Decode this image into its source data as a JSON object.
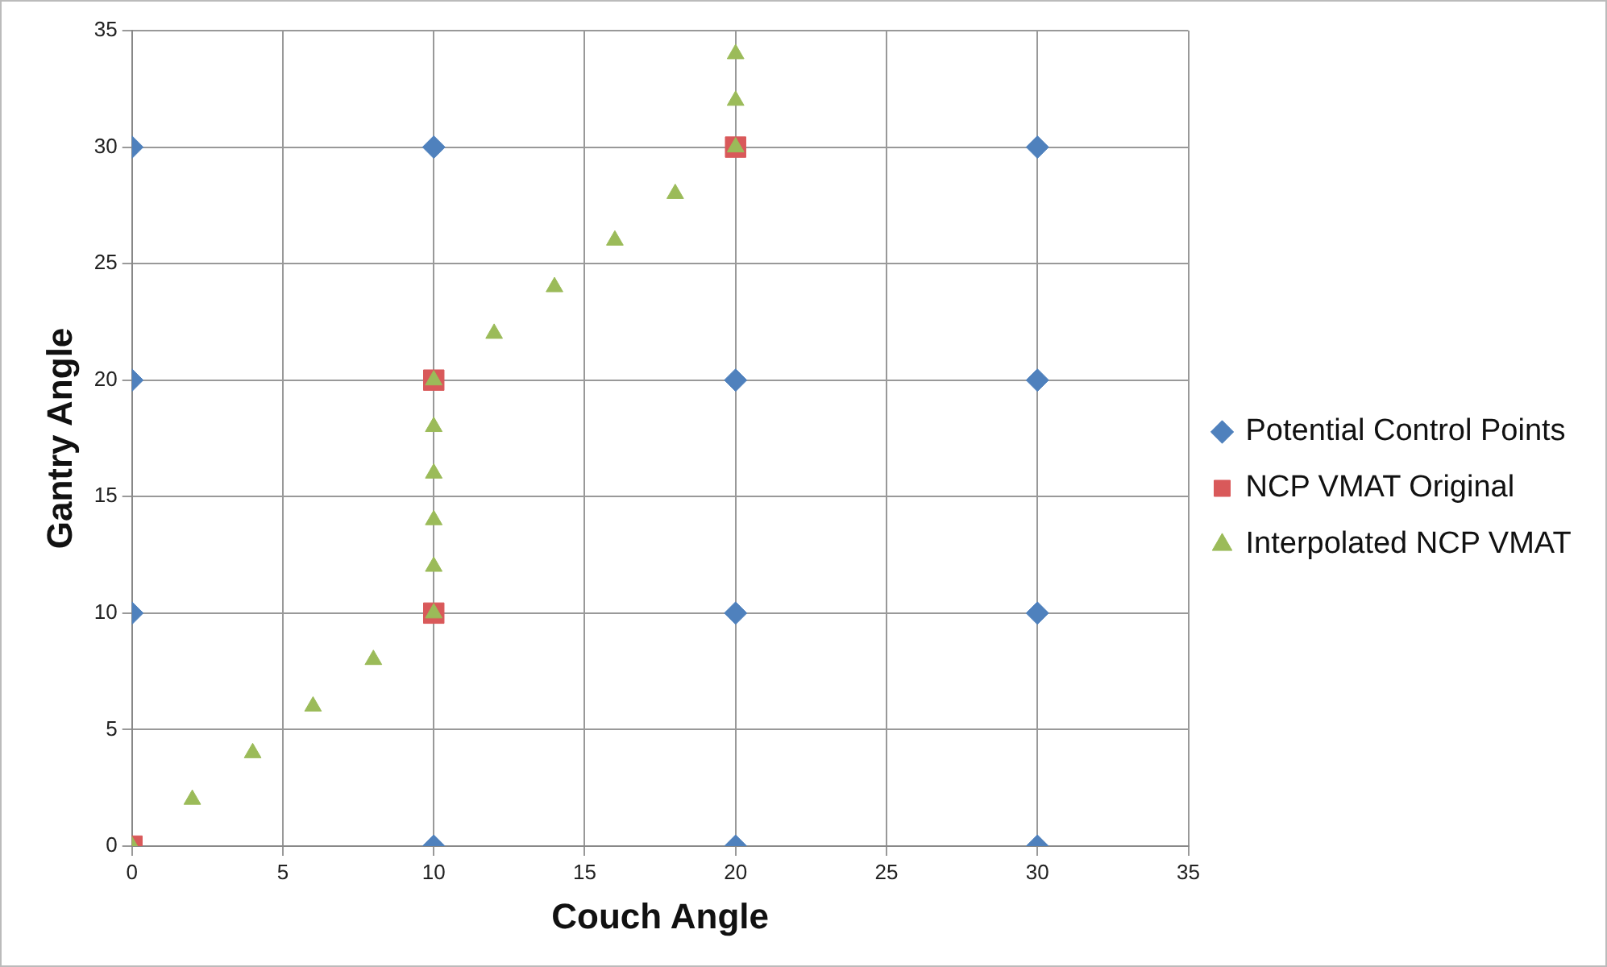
{
  "chart_data": {
    "type": "scatter",
    "xlabel": "Couch Angle",
    "ylabel": "Gantry Angle",
    "xlim": [
      0,
      35
    ],
    "xticks": [
      0,
      5,
      10,
      15,
      20,
      25,
      30,
      35
    ],
    "ylim": [
      0,
      35
    ],
    "yticks": [
      0,
      5,
      10,
      15,
      20,
      25,
      30,
      35
    ],
    "grid": true,
    "legend": "right",
    "series": [
      {
        "name": "Potential Control Points",
        "color": "#4f81bd",
        "marker": "diamond",
        "x": [
          0,
          10,
          30,
          0,
          20,
          30,
          0,
          20,
          30,
          10,
          20,
          30
        ],
        "values": [
          30,
          30,
          30,
          20,
          20,
          20,
          10,
          10,
          10,
          0,
          0,
          0
        ]
      },
      {
        "name": "NCP VMAT Original",
        "color": "#d9595a",
        "marker": "square",
        "x": [
          0,
          10,
          10,
          20
        ],
        "values": [
          0,
          10,
          20,
          30
        ]
      },
      {
        "name": "Interpolated NCP VMAT",
        "color": "#9bbb59",
        "marker": "triangle",
        "x": [
          0,
          2,
          4,
          6,
          8,
          10,
          10,
          10,
          10,
          10,
          10,
          12,
          14,
          16,
          18,
          20,
          20,
          20
        ],
        "values": [
          0,
          2,
          4,
          6,
          8,
          10,
          12,
          14,
          16,
          18,
          20,
          22,
          24,
          26,
          28,
          30,
          32,
          34
        ]
      }
    ]
  }
}
